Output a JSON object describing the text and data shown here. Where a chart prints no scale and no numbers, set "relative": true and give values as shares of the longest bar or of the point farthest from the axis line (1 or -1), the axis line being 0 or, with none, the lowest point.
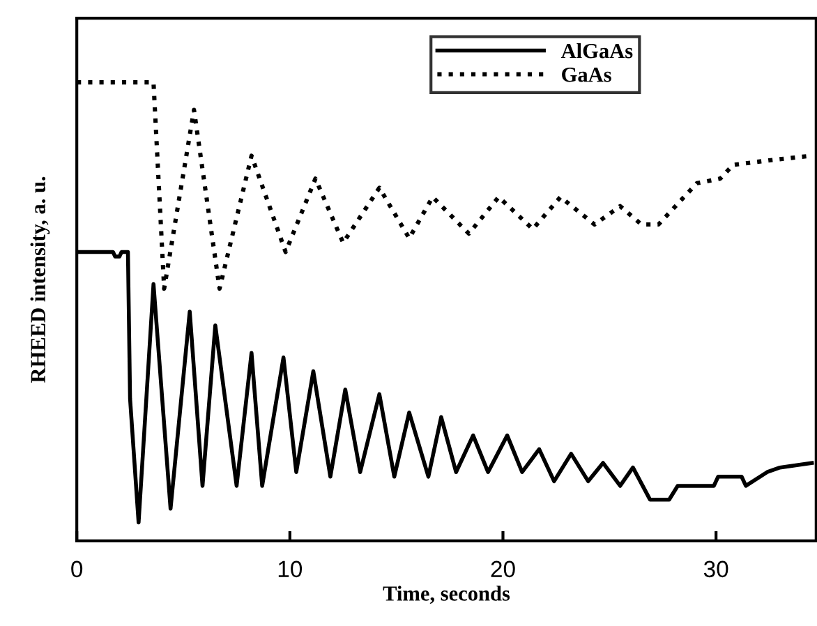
{
  "chart_data": {
    "type": "line",
    "xlabel": "Time, seconds",
    "ylabel": "RHEED intensity, a. u.",
    "relative": true,
    "xlim": [
      0,
      34.7
    ],
    "xticks": [
      0,
      10,
      20,
      30
    ],
    "legend": "top",
    "grid": false,
    "series": [
      {
        "name": "AlGaAs",
        "color": "#000000",
        "line_style": "solid",
        "x": [
          0,
          1.7,
          1.8,
          2.0,
          2.1,
          2.4,
          2.5,
          2.9,
          3.6,
          4.4,
          5.3,
          5.9,
          6.5,
          7.5,
          8.2,
          8.7,
          9.7,
          10.3,
          11.1,
          11.9,
          12.6,
          13.3,
          14.2,
          14.9,
          15.6,
          16.5,
          17.1,
          17.8,
          18.6,
          19.3,
          20.2,
          20.9,
          21.7,
          22.4,
          23.2,
          24.0,
          24.7,
          25.5,
          26.1,
          26.9,
          27.8,
          28.2,
          29.9,
          30.1,
          31.2,
          31.4,
          32.4,
          33.0,
          34.5
        ],
        "values": [
          0.63,
          0.63,
          0.62,
          0.62,
          0.63,
          0.63,
          0.31,
          0.04,
          0.56,
          0.07,
          0.5,
          0.12,
          0.47,
          0.12,
          0.41,
          0.12,
          0.4,
          0.15,
          0.37,
          0.14,
          0.33,
          0.15,
          0.32,
          0.14,
          0.28,
          0.14,
          0.27,
          0.15,
          0.23,
          0.15,
          0.23,
          0.15,
          0.2,
          0.13,
          0.19,
          0.13,
          0.17,
          0.12,
          0.16,
          0.09,
          0.09,
          0.12,
          0.12,
          0.14,
          0.14,
          0.12,
          0.15,
          0.16,
          0.17
        ]
      },
      {
        "name": "GaAs",
        "color": "#000000",
        "line_style": "dotted",
        "x": [
          0,
          3.6,
          4.1,
          5.5,
          6.7,
          8.2,
          9.8,
          11.2,
          12.5,
          14.2,
          15.6,
          16.7,
          18.4,
          19.8,
          21.4,
          22.7,
          24.3,
          25.5,
          26.5,
          27.3,
          29.1,
          30.2,
          30.8,
          32.5,
          34.5
        ],
        "values": [
          1.0,
          1.0,
          0.55,
          0.94,
          0.55,
          0.84,
          0.63,
          0.79,
          0.65,
          0.77,
          0.66,
          0.75,
          0.67,
          0.75,
          0.68,
          0.75,
          0.69,
          0.73,
          0.69,
          0.69,
          0.78,
          0.79,
          0.82,
          0.83,
          0.84
        ]
      }
    ]
  }
}
